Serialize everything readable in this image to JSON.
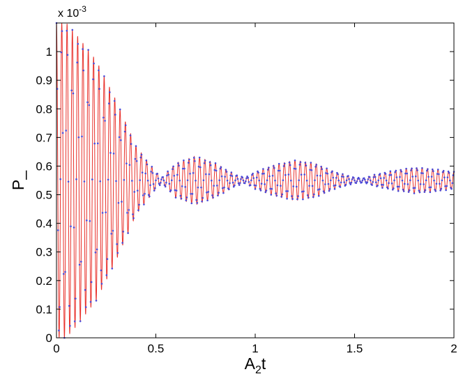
{
  "chart_data": {
    "type": "line",
    "title": "",
    "xlabel": {
      "main": "A",
      "sub": "2",
      "tail": "t"
    },
    "ylabel": "P_",
    "xlim": [
      0,
      2
    ],
    "ylim": [
      0,
      0.0011
    ],
    "xticks": [
      0,
      0.5,
      1,
      1.5,
      2
    ],
    "xtick_labels": [
      "0",
      "0.5",
      "1",
      "1.5",
      "2"
    ],
    "yticks": [
      0,
      0.1,
      0.2,
      0.3,
      0.4,
      0.5,
      0.6,
      0.7,
      0.8,
      0.9,
      1
    ],
    "ytick_labels": [
      "0",
      "0.1",
      "0.2",
      "0.3",
      "0.4",
      "0.5",
      "0.6",
      "0.7",
      "0.8",
      "0.9",
      "1"
    ],
    "y_scale_note": {
      "base": "x 10",
      "exp": "-3"
    },
    "grid": false,
    "legend": "none",
    "colors": {
      "line": "#e8302a",
      "markers": "#4a4ad8",
      "axes": "#000000"
    },
    "series": [
      {
        "style": "solid line (red)",
        "model": {
          "mean": 0.00055,
          "freq_per_unit_x": 37.5,
          "phase_peak_x": 0.0533,
          "envelope_x": [
            0,
            0.05,
            0.1,
            0.2,
            0.3,
            0.4,
            0.5,
            0.53,
            0.6,
            0.7,
            0.8,
            0.9,
            0.95,
            1.0,
            1.1,
            1.2,
            1.3,
            1.4,
            1.5,
            1.55,
            1.6,
            1.7,
            1.8,
            1.9,
            2.0
          ],
          "envelope_amplitude": [
            0.00055,
            0.00055,
            0.00051,
            0.00042,
            0.00028,
            0.00012,
            3e-05,
            1e-05,
            6e-05,
            8.5e-05,
            6e-05,
            2e-05,
            1e-05,
            3e-05,
            5.5e-05,
            7e-05,
            6e-05,
            3e-05,
            1e-05,
            8e-06,
            2e-05,
            3.5e-05,
            4.5e-05,
            4e-05,
            3e-05
          ]
        }
      },
      {
        "style": "dots (blue)",
        "sampling_step_x": 0.004
      }
    ]
  }
}
